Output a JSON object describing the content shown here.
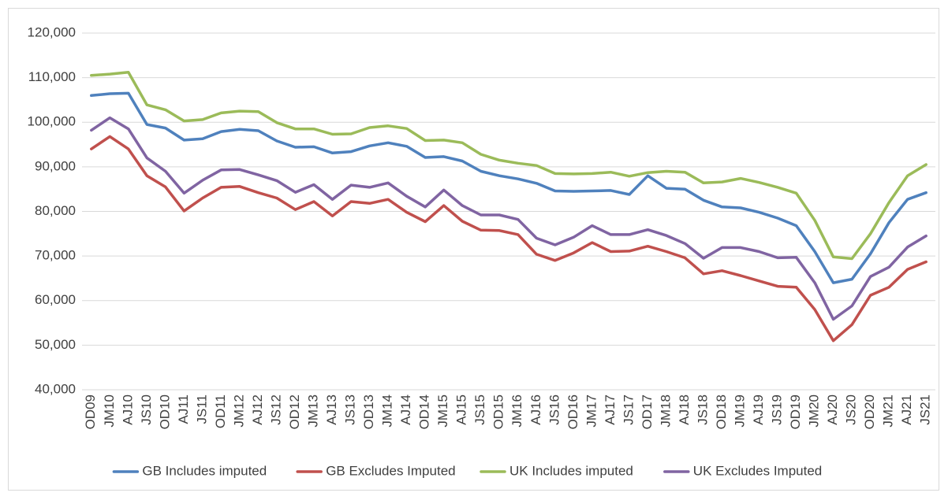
{
  "chart_data": {
    "type": "line",
    "categories": [
      "OD09",
      "JM10",
      "AJ10",
      "JS10",
      "OD10",
      "AJ11",
      "JS11",
      "OD11",
      "JM12",
      "AJ12",
      "JS12",
      "OD12",
      "JM13",
      "AJ13",
      "JS13",
      "OD13",
      "JM14",
      "AJ14",
      "OD14",
      "JM15",
      "AJ15",
      "JS15",
      "OD15",
      "JM16",
      "AJ16",
      "JS16",
      "OD16",
      "JM17",
      "AJ17",
      "JS17",
      "OD17",
      "JM18",
      "AJ18",
      "JS18",
      "OD18",
      "JM19",
      "AJ19",
      "JS19",
      "OD19",
      "JM20",
      "AJ20",
      "JS20",
      "OD20",
      "JM21",
      "AJ21",
      "JS21"
    ],
    "series": [
      {
        "name": "GB Includes imputed",
        "color": "#4f81bd",
        "values": [
          106000,
          106400,
          106500,
          99500,
          98700,
          96000,
          96300,
          97900,
          98400,
          98100,
          95800,
          94400,
          94500,
          93100,
          93400,
          94700,
          95400,
          94600,
          92100,
          92300,
          91300,
          89000,
          88000,
          87300,
          86300,
          84600,
          84500,
          84600,
          84700,
          83800,
          88000,
          85200,
          85000,
          82500,
          81000,
          80800,
          79800,
          78500,
          76800,
          71000,
          64000,
          64800,
          70500,
          77500,
          82700,
          84200
        ]
      },
      {
        "name": "GB Excludes Imputed",
        "color": "#c0504d",
        "values": [
          94000,
          96800,
          94000,
          88000,
          85500,
          80100,
          83000,
          85400,
          85600,
          84200,
          83000,
          80400,
          82200,
          79000,
          82200,
          81800,
          82700,
          79800,
          77700,
          81300,
          77800,
          75800,
          75700,
          74800,
          70400,
          69000,
          70700,
          73000,
          71000,
          71100,
          72200,
          71000,
          69600,
          66000,
          66700,
          65600,
          64400,
          63200,
          63000,
          58000,
          51000,
          54600,
          61200,
          63000,
          67000,
          68700
        ]
      },
      {
        "name": "UK Includes imputed",
        "color": "#9bbb59",
        "values": [
          110500,
          110800,
          111200,
          103900,
          102800,
          100300,
          100600,
          102100,
          102500,
          102400,
          99900,
          98500,
          98500,
          97300,
          97400,
          98800,
          99200,
          98600,
          95900,
          96000,
          95400,
          92800,
          91500,
          90800,
          90300,
          88500,
          88400,
          88500,
          88800,
          87900,
          88700,
          89000,
          88800,
          86400,
          86600,
          87400,
          86500,
          85400,
          84100,
          78000,
          69800,
          69400,
          75000,
          82000,
          88000,
          90500
        ]
      },
      {
        "name": "UK Excludes Imputed",
        "color": "#8064a2",
        "values": [
          98200,
          101000,
          98500,
          92000,
          89000,
          84100,
          87000,
          89300,
          89400,
          88200,
          86900,
          84300,
          86000,
          82700,
          85900,
          85400,
          86400,
          83400,
          81000,
          84800,
          81300,
          79200,
          79200,
          78200,
          74000,
          72500,
          74200,
          76800,
          74800,
          74800,
          75900,
          74600,
          72800,
          69500,
          71900,
          71900,
          71000,
          69600,
          69700,
          64000,
          55800,
          58800,
          65400,
          67500,
          72000,
          74500
        ]
      }
    ],
    "ylim": [
      40000,
      120000
    ],
    "yticks": [
      {
        "value": 40000,
        "label": "40,000"
      },
      {
        "value": 50000,
        "label": "50,000"
      },
      {
        "value": 60000,
        "label": "60,000"
      },
      {
        "value": 70000,
        "label": "70,000"
      },
      {
        "value": 80000,
        "label": "80,000"
      },
      {
        "value": 90000,
        "label": "90,000"
      },
      {
        "value": 100000,
        "label": "100,000"
      },
      {
        "value": 110000,
        "label": "110,000"
      },
      {
        "value": 120000,
        "label": "120,000"
      }
    ],
    "grid": true,
    "legend": "bottom"
  }
}
